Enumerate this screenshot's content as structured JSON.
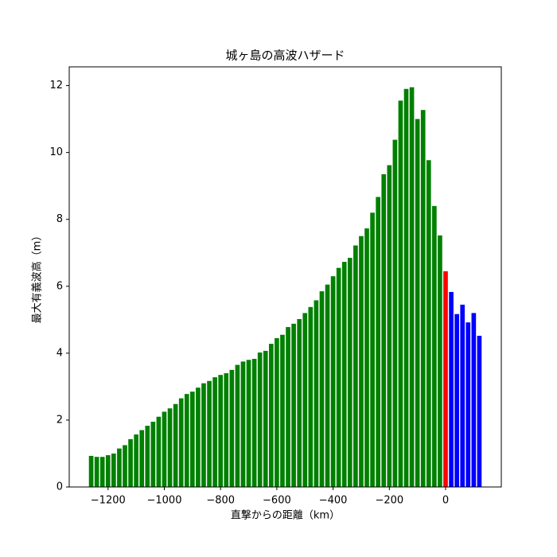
{
  "chart_data": {
    "type": "bar",
    "title": "城ヶ島の高波ハザード",
    "x_label": "直撃からの距離（km）",
    "y_label": "最大有義波高（m）",
    "bar_width": 16,
    "series": [
      {
        "color": "#008000",
        "x": [
          -1260,
          -1240,
          -1220,
          -1200,
          -1180,
          -1160,
          -1140,
          -1120,
          -1100,
          -1080,
          -1060,
          -1040,
          -1020,
          -1000,
          -980,
          -960,
          -940,
          -920,
          -900,
          -880,
          -860,
          -840,
          -820,
          -800,
          -780,
          -760,
          -740,
          -720,
          -700,
          -680,
          -660,
          -640,
          -620,
          -600,
          -580,
          -560,
          -540,
          -520,
          -500,
          -480,
          -460,
          -440,
          -420,
          -400,
          -380,
          -360,
          -340,
          -320,
          -300,
          -280,
          -260,
          -240,
          -220,
          -200,
          -180,
          -160,
          -140,
          -120,
          -100,
          -80,
          -60,
          -40,
          -20
        ],
        "values": [
          0.93,
          0.9,
          0.9,
          0.95,
          1.0,
          1.15,
          1.25,
          1.43,
          1.57,
          1.7,
          1.83,
          1.95,
          2.1,
          2.25,
          2.35,
          2.48,
          2.65,
          2.78,
          2.85,
          2.97,
          3.1,
          3.17,
          3.28,
          3.35,
          3.4,
          3.5,
          3.65,
          3.75,
          3.8,
          3.83,
          4.02,
          4.07,
          4.28,
          4.45,
          4.55,
          4.78,
          4.88,
          5.02,
          5.2,
          5.38,
          5.58,
          5.85,
          6.05,
          6.3,
          6.55,
          6.73,
          6.85,
          7.22,
          7.5,
          7.73,
          8.2,
          8.67,
          9.35,
          9.62,
          10.38,
          11.55,
          11.9,
          11.95,
          11.0,
          11.27,
          9.77,
          8.4,
          7.52
        ]
      },
      {
        "color": "#ff0000",
        "x": [
          0
        ],
        "values": [
          6.45
        ]
      },
      {
        "color": "#0000ff",
        "x": [
          20,
          40,
          60,
          80,
          100,
          120
        ],
        "values": [
          5.83,
          5.17,
          5.45,
          4.92,
          5.2,
          4.52
        ]
      }
    ],
    "xlim": [
      -1338,
      198
    ],
    "ylim": [
      0,
      12.56
    ],
    "xticks": [
      {
        "value": -1200,
        "label": "−1200"
      },
      {
        "value": -1000,
        "label": "−1000"
      },
      {
        "value": -800,
        "label": "−800"
      },
      {
        "value": -600,
        "label": "−600"
      },
      {
        "value": -400,
        "label": "−400"
      },
      {
        "value": -200,
        "label": "−200"
      },
      0
    ],
    "yticks": [
      0,
      2,
      4,
      6,
      8,
      10,
      12
    ]
  }
}
